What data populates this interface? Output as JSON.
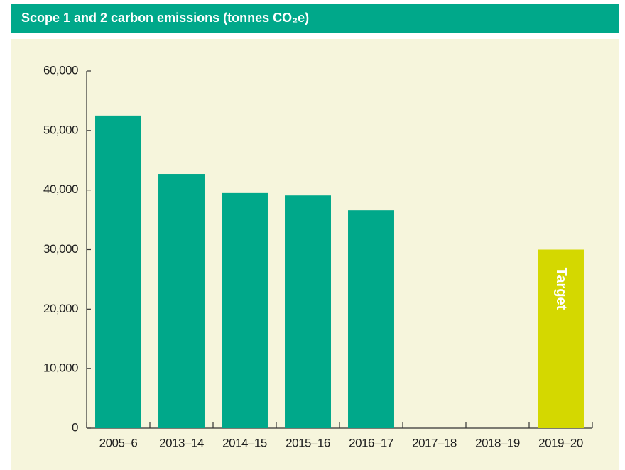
{
  "chart_data": {
    "type": "bar",
    "title": "Scope 1 and 2 carbon emissions (tonnes CO₂e)",
    "categories": [
      "2005–6",
      "2013–14",
      "2014–15",
      "2015–16",
      "2016–17",
      "2017–18",
      "2018–19",
      "2019–20"
    ],
    "series": [
      {
        "color": "#00a88a",
        "values": [
          52500,
          42700,
          39500,
          39100,
          36600,
          null,
          null,
          null
        ]
      },
      {
        "name": "Target",
        "color": "#d4d800",
        "values": [
          null,
          null,
          null,
          null,
          null,
          null,
          null,
          30000
        ]
      }
    ],
    "ylim": [
      0,
      60000
    ],
    "yticks": [
      0,
      {
        "value": 10000,
        "label": "10,000"
      },
      {
        "value": 20000,
        "label": "20,000"
      },
      {
        "value": 30000,
        "label": "30,000"
      },
      {
        "value": 40000,
        "label": "40,000"
      },
      {
        "value": 50000,
        "label": "50,000"
      },
      {
        "value": 60000,
        "label": "60,000"
      }
    ]
  }
}
